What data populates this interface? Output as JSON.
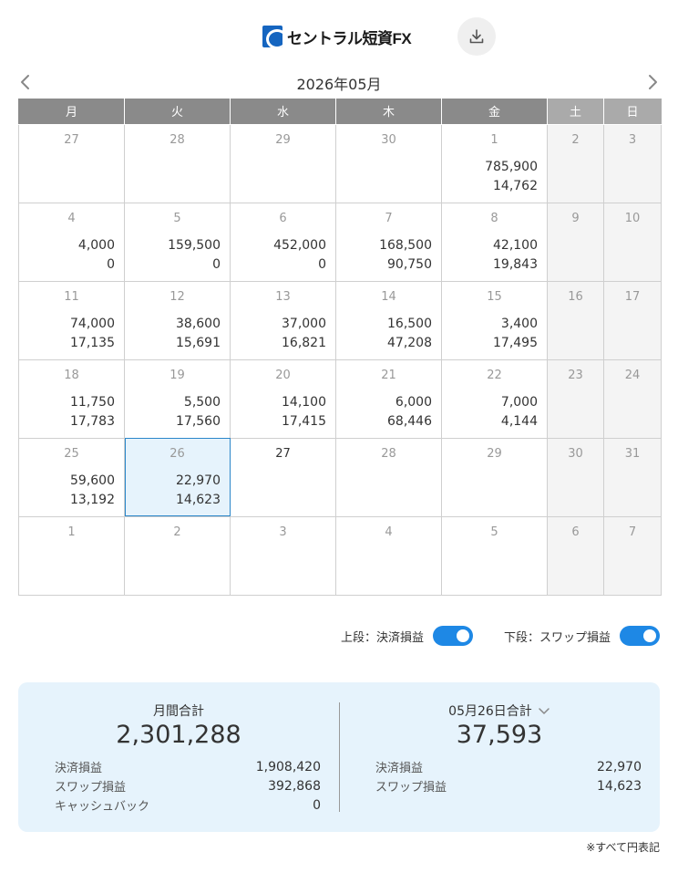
{
  "header": {
    "logo_text": "セントラル短資FX",
    "download_icon": "download-icon"
  },
  "calendar": {
    "month_title": "2026年05月",
    "weekdays": [
      "月",
      "火",
      "水",
      "木",
      "金",
      "土",
      "日"
    ],
    "weeks": [
      [
        {
          "day": "27",
          "top": "",
          "bottom": ""
        },
        {
          "day": "28",
          "top": "",
          "bottom": ""
        },
        {
          "day": "29",
          "top": "",
          "bottom": ""
        },
        {
          "day": "30",
          "top": "",
          "bottom": ""
        },
        {
          "day": "1",
          "top": "785,900",
          "bottom": "14,762"
        },
        {
          "day": "2",
          "top": "",
          "bottom": ""
        },
        {
          "day": "3",
          "top": "",
          "bottom": ""
        }
      ],
      [
        {
          "day": "4",
          "top": "4,000",
          "bottom": "0"
        },
        {
          "day": "5",
          "top": "159,500",
          "bottom": "0"
        },
        {
          "day": "6",
          "top": "452,000",
          "bottom": "0"
        },
        {
          "day": "7",
          "top": "168,500",
          "bottom": "90,750"
        },
        {
          "day": "8",
          "top": "42,100",
          "bottom": "19,843"
        },
        {
          "day": "9",
          "top": "",
          "bottom": ""
        },
        {
          "day": "10",
          "top": "",
          "bottom": ""
        }
      ],
      [
        {
          "day": "11",
          "top": "74,000",
          "bottom": "17,135"
        },
        {
          "day": "12",
          "top": "38,600",
          "bottom": "15,691"
        },
        {
          "day": "13",
          "top": "37,000",
          "bottom": "16,821"
        },
        {
          "day": "14",
          "top": "16,500",
          "bottom": "47,208"
        },
        {
          "day": "15",
          "top": "3,400",
          "bottom": "17,495"
        },
        {
          "day": "16",
          "top": "",
          "bottom": ""
        },
        {
          "day": "17",
          "top": "",
          "bottom": ""
        }
      ],
      [
        {
          "day": "18",
          "top": "11,750",
          "bottom": "17,783"
        },
        {
          "day": "19",
          "top": "5,500",
          "bottom": "17,560"
        },
        {
          "day": "20",
          "top": "14,100",
          "bottom": "17,415"
        },
        {
          "day": "21",
          "top": "6,000",
          "bottom": "68,446"
        },
        {
          "day": "22",
          "top": "7,000",
          "bottom": "4,144"
        },
        {
          "day": "23",
          "top": "",
          "bottom": ""
        },
        {
          "day": "24",
          "top": "",
          "bottom": ""
        }
      ],
      [
        {
          "day": "25",
          "top": "59,600",
          "bottom": "13,192"
        },
        {
          "day": "26",
          "top": "22,970",
          "bottom": "14,623",
          "selected": true
        },
        {
          "day": "27",
          "top": "",
          "bottom": "",
          "today": true
        },
        {
          "day": "28",
          "top": "",
          "bottom": ""
        },
        {
          "day": "29",
          "top": "",
          "bottom": ""
        },
        {
          "day": "30",
          "top": "",
          "bottom": ""
        },
        {
          "day": "31",
          "top": "",
          "bottom": ""
        }
      ],
      [
        {
          "day": "1",
          "top": "",
          "bottom": ""
        },
        {
          "day": "2",
          "top": "",
          "bottom": ""
        },
        {
          "day": "3",
          "top": "",
          "bottom": ""
        },
        {
          "day": "4",
          "top": "",
          "bottom": ""
        },
        {
          "day": "5",
          "top": "",
          "bottom": ""
        },
        {
          "day": "6",
          "top": "",
          "bottom": ""
        },
        {
          "day": "7",
          "top": "",
          "bottom": ""
        }
      ]
    ]
  },
  "toggles": {
    "upper_label": "上段：決済損益",
    "upper_on": true,
    "lower_label": "下段：スワップ損益",
    "lower_on": true
  },
  "summary": {
    "monthly": {
      "title": "月間合計",
      "total": "2,301,288",
      "rows": [
        {
          "label": "決済損益",
          "value": "1,908,420"
        },
        {
          "label": "スワップ損益",
          "value": "392,868"
        },
        {
          "label": "キャッシュバック",
          "value": "0"
        }
      ]
    },
    "daily": {
      "title": "05月26日合計",
      "total": "37,593",
      "rows": [
        {
          "label": "決済損益",
          "value": "22,970"
        },
        {
          "label": "スワップ損益",
          "value": "14,623"
        }
      ]
    }
  },
  "footnote": "※すべて円表記",
  "colors": {
    "accent": "#1e88e5",
    "header_gray": "#8a8a8a",
    "weekend_header": "#aaaaaa",
    "selected_bg": "#e6f3fc",
    "summary_bg": "#e6f3fc"
  }
}
